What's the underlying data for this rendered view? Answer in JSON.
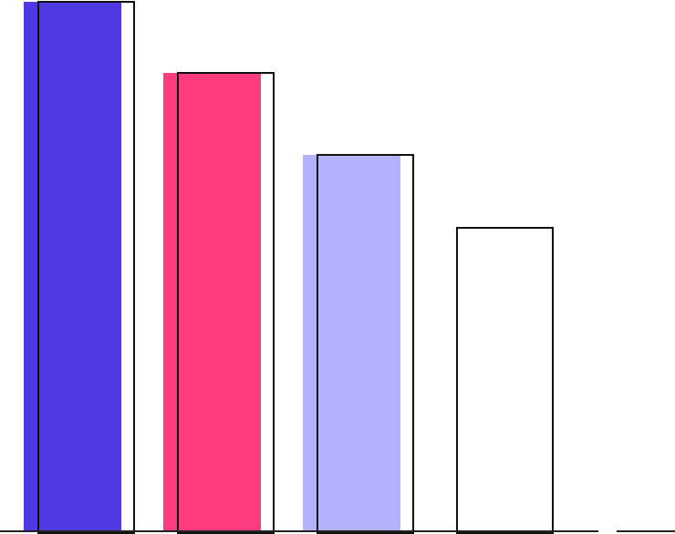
{
  "illustration": {
    "bars": [
      {
        "level": 1.0,
        "color": "#4f39e3",
        "filled": true
      },
      {
        "level": 0.866,
        "color": "#ff3b7f",
        "filled": true
      },
      {
        "level": 0.711,
        "color": "#b4b2fd",
        "filled": true
      },
      {
        "level": 0.575,
        "color": "#ffffff",
        "filled": false
      }
    ],
    "outline_color": "#111111"
  }
}
